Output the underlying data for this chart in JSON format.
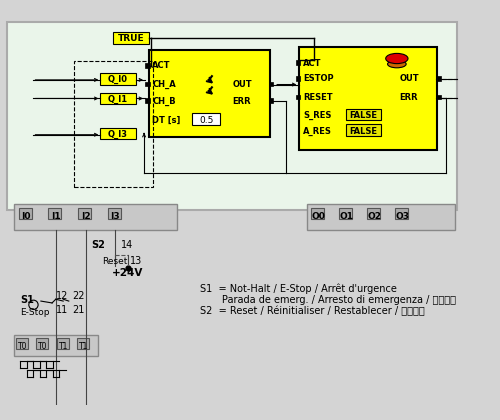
{
  "bg_outer": "#d4d4d4",
  "bg_inner": "#eaf5ea",
  "yellow": "#ffff00",
  "yellow_dark": "#e6e600",
  "black": "#000000",
  "white": "#ffffff",
  "gray_box": "#aaaaaa",
  "gray_light": "#c8c8c8",
  "red_btn": "#dd0000",
  "orange_btn": "#cc6600",
  "io_labels": [
    "I0",
    "I1",
    "I2",
    "I3"
  ],
  "oo_labels": [
    "O0",
    "O1",
    "O2",
    "O3"
  ],
  "t_labels": [
    "T0",
    "T0",
    "T1",
    "T1"
  ],
  "true_label": "TRUE",
  "q_i0": "Q_I0",
  "q_i1": "Q_I1",
  "q_i3": "Q_I3",
  "s1_text": "S1  = Not-Halt / E-Stop / Arrêt d'urgence",
  "s1_text2": "       Parada de emerg. / Arresto di emergenza / 非常停止",
  "s2_text": "S2  = Reset / Réinitialiser / Restablecer / リセット"
}
